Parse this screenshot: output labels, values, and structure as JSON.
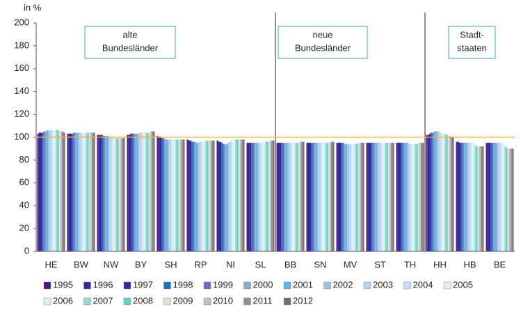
{
  "chart_data": {
    "type": "bar",
    "y_label": "in %",
    "categories": [
      "HE",
      "BW",
      "NW",
      "BY",
      "SH",
      "RP",
      "NI",
      "SL",
      "BB",
      "SN",
      "MV",
      "ST",
      "TH",
      "HH",
      "HB",
      "BE"
    ],
    "ylim": [
      0,
      200
    ],
    "yticks": [
      0,
      20,
      40,
      60,
      80,
      100,
      120,
      140,
      160,
      180,
      200
    ],
    "reference_line": {
      "value": 100,
      "color": "#f5b041"
    },
    "annotations": [
      {
        "lines": [
          "alte",
          "Bundesländer"
        ]
      },
      {
        "lines": [
          "neue",
          "Bundesländer"
        ]
      },
      {
        "lines": [
          "Stadt-",
          "staaten"
        ]
      }
    ],
    "series": [
      {
        "name": "1995",
        "color": "#4b1a7e",
        "values": [
          103,
          103,
          102,
          102,
          101,
          98,
          97,
          95,
          95,
          95,
          95,
          95,
          95,
          102,
          96,
          95
        ]
      },
      {
        "name": "1996",
        "color": "#3b2597",
        "values": [
          104,
          103,
          102,
          102,
          100,
          97,
          96,
          95,
          95,
          95,
          95,
          95,
          95,
          102,
          96,
          95
        ]
      },
      {
        "name": "1997",
        "color": "#2f2aa0",
        "values": [
          104,
          103,
          102,
          103,
          100,
          97,
          96,
          95,
          95,
          95,
          95,
          95,
          95,
          103,
          95,
          95
        ]
      },
      {
        "name": "1998",
        "color": "#1f6fbf",
        "values": [
          104,
          103,
          102,
          103,
          99,
          96,
          95,
          95,
          95,
          95,
          95,
          95,
          95,
          104,
          95,
          95
        ]
      },
      {
        "name": "1999",
        "color": "#6a6cc0",
        "values": [
          105,
          104,
          101,
          103,
          99,
          96,
          94,
          95,
          95,
          95,
          95,
          95,
          95,
          104,
          95,
          95
        ]
      },
      {
        "name": "2000",
        "color": "#8aa8d6",
        "values": [
          105,
          104,
          101,
          103,
          98,
          96,
          94,
          95,
          95,
          95,
          94,
          95,
          95,
          105,
          95,
          95
        ]
      },
      {
        "name": "2001",
        "color": "#5bb8e6",
        "values": [
          106,
          104,
          101,
          103,
          98,
          95,
          94,
          95,
          95,
          95,
          94,
          95,
          95,
          105,
          95,
          95
        ]
      },
      {
        "name": "2002",
        "color": "#9cc3e6",
        "values": [
          106,
          104,
          101,
          103,
          98,
          95,
          95,
          95,
          95,
          95,
          94,
          95,
          95,
          105,
          95,
          95
        ]
      },
      {
        "name": "2003",
        "color": "#b5d2ee",
        "values": [
          106,
          104,
          100,
          104,
          98,
          96,
          96,
          95,
          95,
          95,
          94,
          95,
          94,
          105,
          95,
          95
        ]
      },
      {
        "name": "2004",
        "color": "#c8dcf2",
        "values": [
          106,
          104,
          100,
          104,
          98,
          96,
          97,
          95,
          95,
          95,
          94,
          95,
          94,
          104,
          95,
          95
        ]
      },
      {
        "name": "2005",
        "color": "#e0eef8",
        "values": [
          106,
          104,
          100,
          104,
          98,
          96,
          97,
          95,
          95,
          95,
          94,
          95,
          94,
          104,
          95,
          95
        ]
      },
      {
        "name": "2006",
        "color": "#d8f4ec",
        "values": [
          106,
          104,
          100,
          104,
          98,
          97,
          98,
          95,
          95,
          95,
          94,
          95,
          94,
          103,
          95,
          95
        ]
      },
      {
        "name": "2007",
        "color": "#8fe0d0",
        "values": [
          107,
          104,
          99,
          104,
          98,
          97,
          98,
          96,
          95,
          95,
          94,
          95,
          94,
          103,
          93,
          92
        ]
      },
      {
        "name": "2008",
        "color": "#66cfc0",
        "values": [
          106,
          104,
          99,
          104,
          98,
          97,
          98,
          96,
          95,
          95,
          94,
          95,
          94,
          102,
          92,
          91
        ]
      },
      {
        "name": "2009",
        "color": "#e0e0e0",
        "values": [
          106,
          104,
          99,
          104,
          98,
          97,
          98,
          96,
          95,
          95,
          95,
          95,
          95,
          101,
          92,
          90
        ]
      },
      {
        "name": "2010",
        "color": "#c0c0c0",
        "values": [
          105,
          104,
          99,
          105,
          98,
          97,
          98,
          97,
          96,
          96,
          95,
          95,
          95,
          101,
          92,
          90
        ]
      },
      {
        "name": "2011",
        "color": "#909090",
        "values": [
          105,
          104,
          99,
          105,
          98,
          97,
          98,
          97,
          96,
          96,
          95,
          95,
          95,
          100,
          92,
          90
        ]
      },
      {
        "name": "2012",
        "color": "#707070",
        "values": [
          104,
          104,
          99,
          105,
          98,
          97,
          98,
          97,
          96,
          96,
          95,
          95,
          95,
          100,
          92,
          90
        ]
      }
    ]
  }
}
